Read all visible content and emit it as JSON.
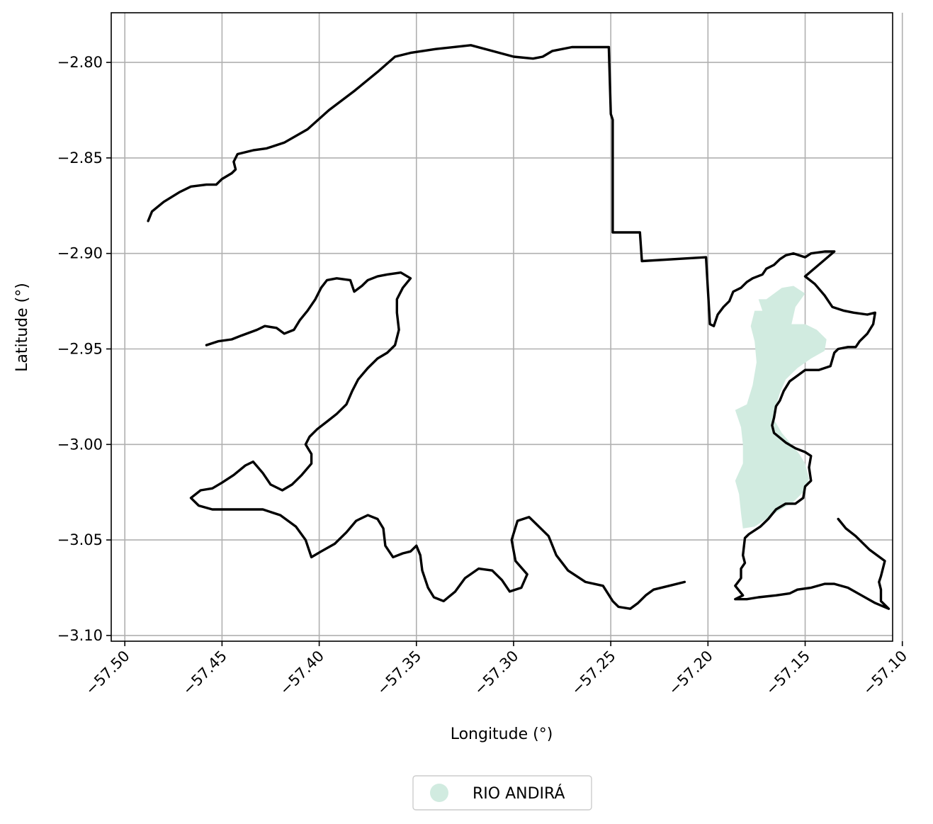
{
  "chart_data": {
    "type": "map",
    "xlabel": "Longitude (°)",
    "ylabel": "Latitude (°)",
    "xlim": [
      -57.507,
      -57.105
    ],
    "ylim": [
      -3.103,
      -2.774
    ],
    "grid": true,
    "x_ticks": [
      -57.5,
      -57.45,
      -57.4,
      -57.35,
      -57.3,
      -57.25,
      -57.2,
      -57.15,
      -57.1
    ],
    "x_tick_labels": [
      "−57.50",
      "−57.45",
      "−57.40",
      "−57.35",
      "−57.30",
      "−57.25",
      "−57.20",
      "−57.15",
      "−57.10"
    ],
    "y_ticks": [
      -2.8,
      -2.85,
      -2.9,
      -2.95,
      -3.0,
      -3.05,
      -3.1
    ],
    "y_tick_labels": [
      "−2.80",
      "−2.85",
      "−2.90",
      "−2.95",
      "−3.00",
      "−3.05",
      "−3.10"
    ],
    "legend": {
      "placement": "bottom-center",
      "entries": [
        {
          "label": "RIO ANDIRÁ",
          "color": "#d1ebe0"
        }
      ]
    },
    "boundary": {
      "color": "#000000",
      "outer": [
        [
          -57.488,
          -2.883
        ],
        [
          -57.486,
          -2.878
        ],
        [
          -57.48,
          -2.873
        ],
        [
          -57.472,
          -2.868
        ],
        [
          -57.466,
          -2.865
        ],
        [
          -57.458,
          -2.864
        ],
        [
          -57.453,
          -2.864
        ],
        [
          -57.45,
          -2.861
        ],
        [
          -57.445,
          -2.858
        ],
        [
          -57.443,
          -2.856
        ],
        [
          -57.444,
          -2.852
        ],
        [
          -57.442,
          -2.848
        ],
        [
          -57.434,
          -2.846
        ],
        [
          -57.427,
          -2.845
        ],
        [
          -57.418,
          -2.842
        ],
        [
          -57.406,
          -2.835
        ],
        [
          -57.395,
          -2.825
        ],
        [
          -57.382,
          -2.815
        ],
        [
          -57.37,
          -2.805
        ],
        [
          -57.361,
          -2.797
        ],
        [
          -57.353,
          -2.795
        ],
        [
          -57.34,
          -2.793
        ],
        [
          -57.322,
          -2.791
        ],
        [
          -57.311,
          -2.794
        ],
        [
          -57.3,
          -2.797
        ],
        [
          -57.29,
          -2.798
        ],
        [
          -57.285,
          -2.797
        ],
        [
          -57.28,
          -2.794
        ],
        [
          -57.27,
          -2.792
        ],
        [
          -57.251,
          -2.792
        ],
        [
          -57.25,
          -2.827
        ],
        [
          -57.249,
          -2.83
        ],
        [
          -57.249,
          -2.889
        ],
        [
          -57.235,
          -2.889
        ],
        [
          -57.234,
          -2.904
        ],
        [
          -57.201,
          -2.902
        ],
        [
          -57.199,
          -2.937
        ],
        [
          -57.197,
          -2.938
        ],
        [
          -57.195,
          -2.932
        ],
        [
          -57.192,
          -2.928
        ],
        [
          -57.189,
          -2.925
        ],
        [
          -57.187,
          -2.92
        ],
        [
          -57.183,
          -2.918
        ],
        [
          -57.18,
          -2.915
        ],
        [
          -57.177,
          -2.913
        ],
        [
          -57.172,
          -2.911
        ],
        [
          -57.17,
          -2.908
        ],
        [
          -57.166,
          -2.906
        ],
        [
          -57.163,
          -2.903
        ],
        [
          -57.16,
          -2.901
        ],
        [
          -57.156,
          -2.9
        ],
        [
          -57.15,
          -2.902
        ],
        [
          -57.147,
          -2.9
        ],
        [
          -57.14,
          -2.899
        ],
        [
          -57.135,
          -2.899
        ],
        [
          -57.15,
          -2.912
        ],
        [
          -57.145,
          -2.916
        ],
        [
          -57.14,
          -2.922
        ],
        [
          -57.136,
          -2.928
        ],
        [
          -57.13,
          -2.93
        ],
        [
          -57.125,
          -2.931
        ],
        [
          -57.118,
          -2.932
        ],
        [
          -57.114,
          -2.931
        ],
        [
          -57.115,
          -2.937
        ],
        [
          -57.118,
          -2.942
        ],
        [
          -57.122,
          -2.946
        ],
        [
          -57.124,
          -2.949
        ],
        [
          -57.128,
          -2.949
        ],
        [
          -57.133,
          -2.95
        ],
        [
          -57.135,
          -2.952
        ],
        [
          -57.137,
          -2.959
        ],
        [
          -57.143,
          -2.961
        ],
        [
          -57.15,
          -2.961
        ],
        [
          -57.154,
          -2.964
        ],
        [
          -57.158,
          -2.967
        ],
        [
          -57.161,
          -2.972
        ],
        [
          -57.163,
          -2.977
        ],
        [
          -57.165,
          -2.98
        ],
        [
          -57.166,
          -2.986
        ],
        [
          -57.167,
          -2.99
        ],
        [
          -57.166,
          -2.994
        ],
        [
          -57.16,
          -2.999
        ],
        [
          -57.155,
          -3.002
        ],
        [
          -57.15,
          -3.004
        ],
        [
          -57.147,
          -3.006
        ],
        [
          -57.148,
          -3.012
        ],
        [
          -57.147,
          -3.019
        ],
        [
          -57.15,
          -3.022
        ],
        [
          -57.151,
          -3.028
        ],
        [
          -57.155,
          -3.031
        ],
        [
          -57.16,
          -3.031
        ],
        [
          -57.165,
          -3.034
        ],
        [
          -57.169,
          -3.039
        ],
        [
          -57.173,
          -3.043
        ],
        [
          -57.179,
          -3.047
        ],
        [
          -57.181,
          -3.049
        ],
        [
          -57.182,
          -3.058
        ],
        [
          -57.181,
          -3.062
        ],
        [
          -57.183,
          -3.065
        ],
        [
          -57.183,
          -3.07
        ],
        [
          -57.186,
          -3.074
        ],
        [
          -57.182,
          -3.079
        ],
        [
          -57.186,
          -3.081
        ],
        [
          -57.18,
          -3.081
        ],
        [
          -57.174,
          -3.08
        ],
        [
          -57.165,
          -3.079
        ],
        [
          -57.158,
          -3.078
        ],
        [
          -57.154,
          -3.076
        ],
        [
          -57.147,
          -3.075
        ],
        [
          -57.14,
          -3.073
        ],
        [
          -57.135,
          -3.073
        ],
        [
          -57.128,
          -3.075
        ],
        [
          -57.121,
          -3.079
        ],
        [
          -57.114,
          -3.083
        ],
        [
          -57.107,
          -3.086
        ],
        [
          -57.111,
          -3.082
        ],
        [
          -57.111,
          -3.076
        ],
        [
          -57.112,
          -3.072
        ],
        [
          -57.111,
          -3.069
        ],
        [
          -57.109,
          -3.061
        ],
        [
          -57.117,
          -3.055
        ],
        [
          -57.124,
          -3.048
        ],
        [
          -57.129,
          -3.044
        ],
        [
          -57.133,
          -3.039
        ]
      ],
      "island": [
        [
          -57.458,
          -2.948
        ],
        [
          -57.452,
          -2.946
        ],
        [
          -57.445,
          -2.945
        ],
        [
          -57.44,
          -2.943
        ],
        [
          -57.432,
          -2.94
        ],
        [
          -57.428,
          -2.938
        ],
        [
          -57.422,
          -2.939
        ],
        [
          -57.418,
          -2.942
        ],
        [
          -57.413,
          -2.94
        ],
        [
          -57.41,
          -2.935
        ],
        [
          -57.406,
          -2.93
        ],
        [
          -57.402,
          -2.924
        ],
        [
          -57.399,
          -2.918
        ],
        [
          -57.396,
          -2.914
        ],
        [
          -57.391,
          -2.913
        ],
        [
          -57.384,
          -2.914
        ],
        [
          -57.382,
          -2.92
        ],
        [
          -57.378,
          -2.917
        ],
        [
          -57.375,
          -2.914
        ],
        [
          -57.37,
          -2.912
        ],
        [
          -57.365,
          -2.911
        ],
        [
          -57.358,
          -2.91
        ],
        [
          -57.353,
          -2.913
        ],
        [
          -57.357,
          -2.918
        ],
        [
          -57.36,
          -2.924
        ],
        [
          -57.36,
          -2.931
        ],
        [
          -57.359,
          -2.94
        ],
        [
          -57.361,
          -2.948
        ],
        [
          -57.365,
          -2.952
        ],
        [
          -57.37,
          -2.955
        ],
        [
          -57.375,
          -2.96
        ],
        [
          -57.38,
          -2.966
        ],
        [
          -57.383,
          -2.972
        ],
        [
          -57.386,
          -2.979
        ],
        [
          -57.391,
          -2.984
        ],
        [
          -57.396,
          -2.988
        ],
        [
          -57.401,
          -2.992
        ],
        [
          -57.405,
          -2.996
        ],
        [
          -57.407,
          -3.0
        ],
        [
          -57.404,
          -3.005
        ],
        [
          -57.404,
          -3.01
        ],
        [
          -57.409,
          -3.016
        ],
        [
          -57.414,
          -3.021
        ],
        [
          -57.419,
          -3.024
        ],
        [
          -57.425,
          -3.021
        ],
        [
          -57.429,
          -3.015
        ],
        [
          -57.434,
          -3.009
        ],
        [
          -57.438,
          -3.011
        ],
        [
          -57.444,
          -3.016
        ],
        [
          -57.45,
          -3.02
        ],
        [
          -57.455,
          -3.023
        ],
        [
          -57.461,
          -3.024
        ],
        [
          -57.466,
          -3.028
        ],
        [
          -57.462,
          -3.032
        ],
        [
          -57.455,
          -3.034
        ],
        [
          -57.442,
          -3.034
        ],
        [
          -57.429,
          -3.034
        ],
        [
          -57.42,
          -3.037
        ],
        [
          -57.412,
          -3.043
        ],
        [
          -57.407,
          -3.05
        ],
        [
          -57.404,
          -3.059
        ],
        [
          -57.399,
          -3.056
        ],
        [
          -57.392,
          -3.052
        ],
        [
          -57.386,
          -3.046
        ],
        [
          -57.381,
          -3.04
        ],
        [
          -57.375,
          -3.037
        ],
        [
          -57.37,
          -3.039
        ],
        [
          -57.367,
          -3.044
        ],
        [
          -57.366,
          -3.053
        ],
        [
          -57.362,
          -3.059
        ],
        [
          -57.357,
          -3.057
        ],
        [
          -57.353,
          -3.056
        ],
        [
          -57.35,
          -3.053
        ],
        [
          -57.348,
          -3.058
        ],
        [
          -57.347,
          -3.066
        ],
        [
          -57.344,
          -3.075
        ],
        [
          -57.341,
          -3.08
        ],
        [
          -57.336,
          -3.082
        ],
        [
          -57.33,
          -3.077
        ],
        [
          -57.325,
          -3.07
        ],
        [
          -57.318,
          -3.065
        ],
        [
          -57.311,
          -3.066
        ],
        [
          -57.306,
          -3.071
        ],
        [
          -57.302,
          -3.077
        ],
        [
          -57.296,
          -3.075
        ],
        [
          -57.293,
          -3.068
        ],
        [
          -57.299,
          -3.061
        ],
        [
          -57.301,
          -3.05
        ],
        [
          -57.298,
          -3.04
        ],
        [
          -57.292,
          -3.038
        ],
        [
          -57.288,
          -3.042
        ],
        [
          -57.282,
          -3.048
        ],
        [
          -57.278,
          -3.058
        ],
        [
          -57.272,
          -3.066
        ],
        [
          -57.263,
          -3.072
        ],
        [
          -57.254,
          -3.074
        ],
        [
          -57.249,
          -3.082
        ],
        [
          -57.246,
          -3.085
        ],
        [
          -57.24,
          -3.086
        ],
        [
          -57.236,
          -3.083
        ],
        [
          -57.232,
          -3.079
        ],
        [
          -57.228,
          -3.076
        ],
        [
          -57.22,
          -3.074
        ],
        [
          -57.212,
          -3.072
        ]
      ]
    },
    "highlighted_region": {
      "name": "RIO ANDIRÁ",
      "color": "#d1ebe0",
      "polygon": [
        [
          -57.17,
          -2.924
        ],
        [
          -57.162,
          -2.918
        ],
        [
          -57.156,
          -2.917
        ],
        [
          -57.15,
          -2.921
        ],
        [
          -57.155,
          -2.928
        ],
        [
          -57.157,
          -2.937
        ],
        [
          -57.15,
          -2.937
        ],
        [
          -57.144,
          -2.94
        ],
        [
          -57.139,
          -2.945
        ],
        [
          -57.14,
          -2.951
        ],
        [
          -57.147,
          -2.955
        ],
        [
          -57.154,
          -2.96
        ],
        [
          -57.16,
          -2.966
        ],
        [
          -57.163,
          -2.973
        ],
        [
          -57.165,
          -2.98
        ],
        [
          -57.166,
          -2.987
        ],
        [
          -57.162,
          -2.994
        ],
        [
          -57.157,
          -3.0
        ],
        [
          -57.153,
          -3.005
        ],
        [
          -57.15,
          -3.01
        ],
        [
          -57.148,
          -3.018
        ],
        [
          -57.15,
          -3.024
        ],
        [
          -57.156,
          -3.03
        ],
        [
          -57.164,
          -3.035
        ],
        [
          -57.17,
          -3.039
        ],
        [
          -57.176,
          -3.043
        ],
        [
          -57.182,
          -3.044
        ],
        [
          -57.183,
          -3.036
        ],
        [
          -57.184,
          -3.026
        ],
        [
          -57.186,
          -3.019
        ],
        [
          -57.182,
          -3.01
        ],
        [
          -57.182,
          -3.0
        ],
        [
          -57.183,
          -2.991
        ],
        [
          -57.186,
          -2.982
        ],
        [
          -57.18,
          -2.979
        ],
        [
          -57.177,
          -2.969
        ],
        [
          -57.175,
          -2.957
        ],
        [
          -57.176,
          -2.946
        ],
        [
          -57.178,
          -2.938
        ],
        [
          -57.176,
          -2.93
        ],
        [
          -57.172,
          -2.93
        ],
        [
          -57.174,
          -2.924
        ]
      ]
    }
  }
}
